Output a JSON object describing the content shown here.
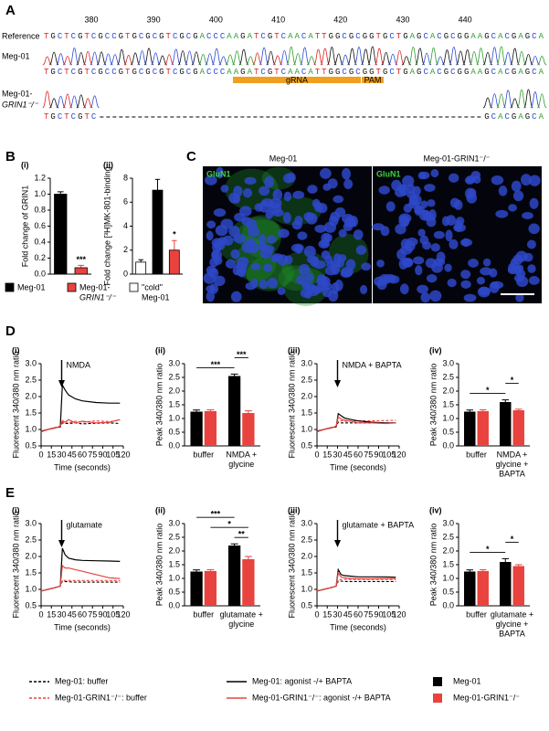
{
  "panel_labels": [
    "A",
    "B",
    "C",
    "D",
    "E"
  ],
  "sequence": {
    "positions": [
      380,
      390,
      400,
      410,
      420,
      430,
      440
    ],
    "reference": {
      "name": "Reference",
      "seq": "TGCTCGTCGCCGTGCGCGTCGCGACCCAAGATCGTCAACATTGGCGCGGTGCTGAGCACGCGGAAGCACGAGCA"
    },
    "wildtype": {
      "name": "Meg-01",
      "seq": "TGCTCGTCGCCGTGCGCGTCGCGACCCAAGATCGTCAACATTGGCGCGGTGCTGAGCACGCGGAAGCACGAGCA"
    },
    "knockout": {
      "name": [
        "Meg-01-",
        "GRIN1⁻/⁻"
      ],
      "seq_start": "TGCTCGTC",
      "seq_end": "GCACGAGCA"
    },
    "grna": "gRNA",
    "pam": "PAM"
  },
  "microscopy": {
    "titles": [
      "Meg-01",
      "Meg-01-GRIN1⁻/⁻"
    ],
    "stain": [
      "GluN1",
      "GluN1"
    ]
  },
  "legend_b": [
    {
      "label": [
        "Meg-01"
      ],
      "color": "#000000"
    },
    {
      "label": [
        "Meg-01-",
        "GRIN1⁻/⁻"
      ],
      "color": "#e8433f"
    },
    {
      "label": [
        "\"cold\"",
        "Meg-01"
      ],
      "color": "#ffffff"
    }
  ],
  "legend": [
    {
      "label": "Meg-01: buffer",
      "color": "#000000",
      "kind": "line",
      "dash": true
    },
    {
      "label": "Meg-01-GRIN1⁻/⁻: buffer",
      "color": "#e8433f",
      "kind": "line",
      "dash": true
    },
    {
      "label": "Meg-01: agonist -/+ BAPTA",
      "color": "#000000",
      "kind": "line",
      "dash": false
    },
    {
      "label": "Meg-01-GRIN1⁻/⁻: agonist -/+ BAPTA",
      "color": "#e8433f",
      "kind": "line",
      "dash": false
    },
    {
      "label": "Meg-01",
      "color": "#000000",
      "kind": "box",
      "dash": false
    },
    {
      "label": "Meg-01-GRIN1⁻/⁻",
      "color": "#e8433f",
      "kind": "box",
      "dash": false
    }
  ],
  "chart_data": [
    {
      "type": "bar",
      "panel": "(i)",
      "ylabel": "Fold change of GRIN1",
      "categories": [
        null,
        null
      ],
      "values": [
        1.0,
        0.08
      ],
      "errors": [
        0.03,
        0.03
      ],
      "colors": [
        "#000000",
        "#e8433f"
      ],
      "ylim": [
        0,
        1.2
      ],
      "yticks": [
        {
          "value": 0,
          "label": "0.0"
        },
        0.2,
        0.4,
        0.6,
        0.8,
        {
          "value": 1,
          "label": "1.0"
        },
        1.2
      ],
      "significance": [
        {
          "label": "***",
          "at": 1
        }
      ]
    },
    {
      "type": "bar",
      "panel": "(ii)",
      "ylabel": "Fold change [³H]MK-801-binding",
      "categories": [
        null,
        null,
        null
      ],
      "values": [
        1.0,
        7.0,
        2.0
      ],
      "errors": [
        0.2,
        0.9,
        0.8
      ],
      "colors": [
        "#ffffff",
        "#000000",
        "#e8433f"
      ],
      "ylim": [
        0,
        8
      ],
      "yticks": [
        0,
        2,
        4,
        6,
        8
      ],
      "significance": [
        {
          "label": "*",
          "at": 2
        }
      ]
    },
    {
      "type": "line",
      "panel": "(i)",
      "ylabel": "Fluorescent 340/380 nm ratio",
      "xlabel": "Time (seconds)",
      "annotation": {
        "text": "NMDA",
        "x": 30
      },
      "x": [
        0,
        10,
        20,
        28,
        31,
        35,
        40,
        50,
        60,
        80,
        100,
        115
      ],
      "xlim": [
        0,
        120
      ],
      "xticks": [
        0,
        15,
        30,
        45,
        60,
        75,
        90,
        105,
        120
      ],
      "ylim": [
        0.5,
        3
      ],
      "yticks": [
        0.5,
        {
          "value": 1,
          "label": "1.0"
        },
        1.5,
        {
          "value": 2,
          "label": "2.0"
        },
        2.5,
        {
          "value": 3,
          "label": "3.0"
        }
      ],
      "series": [
        {
          "color": "#000000",
          "dash": true,
          "values": [
            0.93,
            1.0,
            1.05,
            1.08,
            1.2,
            1.18,
            1.18,
            1.2,
            1.17,
            1.19,
            1.2,
            1.18
          ]
        },
        {
          "color": "#e8433f",
          "dash": true,
          "values": [
            0.93,
            1.0,
            1.05,
            1.1,
            1.22,
            1.24,
            1.2,
            1.25,
            1.22,
            1.26,
            1.24,
            1.28
          ]
        },
        {
          "color": "#000000",
          "dash": false,
          "values": [
            0.95,
            1.0,
            1.05,
            1.08,
            2.35,
            2.2,
            2.05,
            1.93,
            1.87,
            1.82,
            1.8,
            1.8
          ]
        },
        {
          "color": "#e8433f",
          "dash": false,
          "values": [
            0.93,
            1.0,
            1.04,
            1.1,
            1.27,
            1.22,
            1.3,
            1.2,
            1.25,
            1.2,
            1.22,
            1.3
          ]
        }
      ]
    },
    {
      "type": "groupbar",
      "panel": "(ii)",
      "ylabel": "Peak 340/380 nm ratio",
      "categories": [
        [
          "buffer"
        ],
        [
          "NMDA +",
          "glycine"
        ]
      ],
      "ylim": [
        0,
        3
      ],
      "yticks": [
        {
          "value": 0,
          "label": "0.0"
        },
        0.5,
        {
          "value": 1,
          "label": "1.0"
        },
        1.5,
        {
          "value": 2,
          "label": "2.0"
        },
        2.5,
        {
          "value": 3,
          "label": "3.0"
        }
      ],
      "series": [
        {
          "color": "#000000",
          "values": [
            1.25,
            2.55
          ],
          "errors": [
            0.06,
            0.07
          ]
        },
        {
          "color": "#e8433f",
          "values": [
            1.27,
            1.2
          ],
          "errors": [
            0.05,
            0.08
          ]
        }
      ],
      "significance": [
        {
          "label": "***",
          "from": [
            0,
            0
          ],
          "to": [
            1,
            0
          ]
        },
        {
          "label": "***",
          "from": [
            1,
            0
          ],
          "to": [
            1,
            1
          ]
        }
      ]
    },
    {
      "type": "line",
      "panel": "(iii)",
      "ylabel": "Fluorescent 340/380 nm ratio",
      "xlabel": "Time (seconds)",
      "annotation": {
        "text": "NMDA + BAPTA",
        "x": 30
      },
      "x": [
        0,
        10,
        20,
        28,
        31,
        35,
        40,
        50,
        60,
        80,
        100,
        115
      ],
      "xlim": [
        0,
        120
      ],
      "xticks": [
        0,
        15,
        30,
        45,
        60,
        75,
        90,
        105,
        120
      ],
      "ylim": [
        0.5,
        3
      ],
      "yticks": [
        0.5,
        {
          "value": 1,
          "label": "1.0"
        },
        1.5,
        {
          "value": 2,
          "label": "2.0"
        },
        2.5,
        {
          "value": 3,
          "label": "3.0"
        }
      ],
      "series": [
        {
          "color": "#000000",
          "dash": true,
          "values": [
            0.93,
            1.0,
            1.05,
            1.08,
            1.22,
            1.2,
            1.2,
            1.2,
            1.2,
            1.2,
            1.2,
            1.2
          ]
        },
        {
          "color": "#e8433f",
          "dash": true,
          "values": [
            0.93,
            1.0,
            1.05,
            1.1,
            1.25,
            1.27,
            1.25,
            1.25,
            1.27,
            1.26,
            1.27,
            1.28
          ]
        },
        {
          "color": "#000000",
          "dash": false,
          "values": [
            0.95,
            1.0,
            1.05,
            1.08,
            1.48,
            1.42,
            1.35,
            1.3,
            1.26,
            1.22,
            1.2,
            1.2
          ]
        },
        {
          "color": "#e8433f",
          "dash": false,
          "values": [
            0.93,
            1.0,
            1.04,
            1.1,
            1.38,
            1.32,
            1.28,
            1.25,
            1.2,
            1.2,
            1.18,
            1.2
          ]
        }
      ]
    },
    {
      "type": "groupbar",
      "panel": "(iv)",
      "ylabel": "Peak 340/380 nm ratio",
      "categories": [
        [
          "buffer"
        ],
        [
          "NMDA +",
          "glycine +",
          "BAPTA"
        ]
      ],
      "ylim": [
        0,
        3
      ],
      "yticks": [
        {
          "value": 0,
          "label": "0.0"
        },
        0.5,
        {
          "value": 1,
          "label": "1.0"
        },
        1.5,
        {
          "value": 2,
          "label": "2.0"
        },
        2.5,
        {
          "value": 3,
          "label": "3.0"
        }
      ],
      "series": [
        {
          "color": "#000000",
          "values": [
            1.25,
            1.6
          ],
          "errors": [
            0.06,
            0.08
          ]
        },
        {
          "color": "#e8433f",
          "values": [
            1.27,
            1.3
          ],
          "errors": [
            0.05,
            0.04
          ]
        }
      ],
      "significance": [
        {
          "label": "*",
          "from": [
            0,
            0
          ],
          "to": [
            1,
            0
          ]
        },
        {
          "label": "*",
          "from": [
            1,
            0
          ],
          "to": [
            1,
            1
          ]
        }
      ]
    },
    {
      "type": "line",
      "panel": "(i)",
      "ylabel": "Fluorescent 340/380 nm ratio",
      "xlabel": "Time (seconds)",
      "annotation": {
        "text": "glutamate",
        "x": 30
      },
      "x": [
        0,
        10,
        20,
        28,
        31,
        35,
        40,
        50,
        60,
        80,
        100,
        115
      ],
      "xlim": [
        0,
        120
      ],
      "xticks": [
        0,
        15,
        30,
        45,
        60,
        75,
        90,
        105,
        120
      ],
      "ylim": [
        0.5,
        3
      ],
      "yticks": [
        0.5,
        {
          "value": 1,
          "label": "1.0"
        },
        1.5,
        {
          "value": 2,
          "label": "2.0"
        },
        2.5,
        {
          "value": 3,
          "label": "3.0"
        }
      ],
      "series": [
        {
          "color": "#000000",
          "dash": true,
          "values": [
            0.95,
            1.0,
            1.05,
            1.1,
            1.25,
            1.24,
            1.23,
            1.22,
            1.22,
            1.22,
            1.22,
            1.22
          ]
        },
        {
          "color": "#e8433f",
          "dash": true,
          "values": [
            0.95,
            1.0,
            1.05,
            1.1,
            1.28,
            1.27,
            1.27,
            1.27,
            1.27,
            1.27,
            1.27,
            1.27
          ]
        },
        {
          "color": "#000000",
          "dash": false,
          "values": [
            0.95,
            1.0,
            1.05,
            1.1,
            2.25,
            2.05,
            1.95,
            1.9,
            1.88,
            1.87,
            1.86,
            1.85
          ]
        },
        {
          "color": "#e8433f",
          "dash": false,
          "values": [
            0.95,
            1.0,
            1.05,
            1.1,
            1.72,
            1.65,
            1.65,
            1.6,
            1.55,
            1.45,
            1.35,
            1.33
          ]
        }
      ]
    },
    {
      "type": "groupbar",
      "panel": "(ii)",
      "ylabel": "Peak 340/380 nm ratio",
      "categories": [
        [
          "buffer"
        ],
        [
          "glutamate +",
          "glycine"
        ]
      ],
      "ylim": [
        0,
        3
      ],
      "yticks": [
        {
          "value": 0,
          "label": "0.0"
        },
        0.5,
        {
          "value": 1,
          "label": "1.0"
        },
        1.5,
        {
          "value": 2,
          "label": "2.0"
        },
        2.5,
        {
          "value": 3,
          "label": "3.0"
        }
      ],
      "series": [
        {
          "color": "#000000",
          "values": [
            1.25,
            2.2
          ],
          "errors": [
            0.06,
            0.06
          ]
        },
        {
          "color": "#e8433f",
          "values": [
            1.27,
            1.7
          ],
          "errors": [
            0.05,
            0.1
          ]
        }
      ],
      "significance": [
        {
          "label": "**",
          "from": [
            1,
            0
          ],
          "to": [
            1,
            1
          ]
        },
        {
          "label": "*",
          "from": [
            0,
            1
          ],
          "to": [
            1,
            1
          ]
        },
        {
          "label": "***",
          "from": [
            0,
            0
          ],
          "to": [
            1,
            0
          ]
        }
      ]
    },
    {
      "type": "line",
      "panel": "(iii)",
      "ylabel": "Fluorescent 340/380 nm ratio",
      "xlabel": "Time (seconds)",
      "annotation": {
        "text": "glutamate + BAPTA",
        "x": 30
      },
      "x": [
        0,
        10,
        20,
        28,
        31,
        35,
        40,
        50,
        60,
        80,
        100,
        115
      ],
      "xlim": [
        0,
        120
      ],
      "xticks": [
        0,
        15,
        30,
        45,
        60,
        75,
        90,
        105,
        120
      ],
      "ylim": [
        0.5,
        3
      ],
      "yticks": [
        0.5,
        {
          "value": 1,
          "label": "1.0"
        },
        1.5,
        {
          "value": 2,
          "label": "2.0"
        },
        2.5,
        {
          "value": 3,
          "label": "3.0"
        }
      ],
      "series": [
        {
          "color": "#000000",
          "dash": true,
          "values": [
            0.95,
            1.0,
            1.05,
            1.1,
            1.25,
            1.25,
            1.24,
            1.24,
            1.24,
            1.24,
            1.24,
            1.24
          ]
        },
        {
          "color": "#e8433f",
          "dash": true,
          "values": [
            0.95,
            1.0,
            1.05,
            1.1,
            1.28,
            1.3,
            1.3,
            1.3,
            1.3,
            1.3,
            1.3,
            1.3
          ]
        },
        {
          "color": "#000000",
          "dash": false,
          "values": [
            0.95,
            1.0,
            1.05,
            1.1,
            1.6,
            1.45,
            1.42,
            1.4,
            1.38,
            1.38,
            1.38,
            1.37
          ]
        },
        {
          "color": "#e8433f",
          "dash": false,
          "values": [
            0.95,
            1.0,
            1.05,
            1.1,
            1.5,
            1.38,
            1.35,
            1.33,
            1.32,
            1.32,
            1.33,
            1.33
          ]
        }
      ]
    },
    {
      "type": "groupbar",
      "panel": "(iv)",
      "ylabel": "Peak 340/380 nm ratio",
      "categories": [
        [
          "buffer"
        ],
        [
          "glutamate +",
          "glycine +",
          "BAPTA"
        ]
      ],
      "ylim": [
        0,
        3
      ],
      "yticks": [
        {
          "value": 0,
          "label": "0.0"
        },
        0.5,
        {
          "value": 1,
          "label": "1.0"
        },
        1.5,
        {
          "value": 2,
          "label": "2.0"
        },
        2.5,
        {
          "value": 3,
          "label": "3.0"
        }
      ],
      "series": [
        {
          "color": "#000000",
          "values": [
            1.25,
            1.6
          ],
          "errors": [
            0.06,
            0.12
          ]
        },
        {
          "color": "#e8433f",
          "values": [
            1.27,
            1.45
          ],
          "errors": [
            0.05,
            0.05
          ]
        }
      ],
      "significance": [
        {
          "label": "*",
          "from": [
            0,
            0
          ],
          "to": [
            1,
            0
          ]
        },
        {
          "label": "*",
          "from": [
            1,
            0
          ],
          "to": [
            1,
            1
          ]
        }
      ]
    }
  ]
}
